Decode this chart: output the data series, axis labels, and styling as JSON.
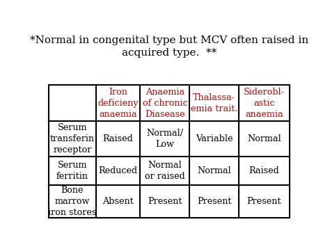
{
  "title_line1": "*Normal in congenital type but MCV often raised in",
  "title_line2": "acquired type.  **",
  "title_fontsize": 11,
  "title_color": "#000000",
  "background_color": "#ffffff",
  "table_border_color": "#000000",
  "header_text_color": "#cc0000",
  "body_text_color": "#000000",
  "col_headers": [
    "",
    "Iron\ndeficieny\nanaemia",
    "Anaemia\nof chronic\nDiasease",
    "Thalassa-\nemia trait.",
    "Siderobl-\nastic\nanaemia"
  ],
  "row_labels": [
    "Serum\ntransferin\nreceptor",
    "Serum\nferritin",
    "Bone\nmarrow\niron stores"
  ],
  "cell_data": [
    [
      "Raised",
      "Normal/\nLow",
      "Variable",
      "Normal"
    ],
    [
      "Reduced",
      "Normal\nor raised",
      "Normal",
      "Raised"
    ],
    [
      "Absent",
      "Present",
      "Present",
      "Present"
    ]
  ],
  "col_props": [
    0.195,
    0.185,
    0.205,
    0.205,
    0.21
  ],
  "row_props": [
    0.275,
    0.265,
    0.215,
    0.245
  ]
}
